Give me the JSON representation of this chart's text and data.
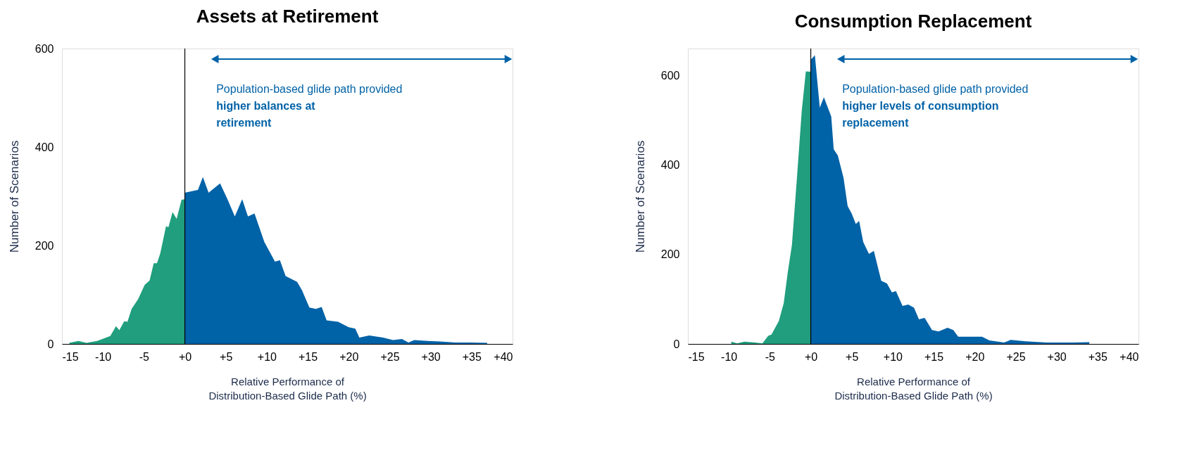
{
  "chart_data": [
    {
      "type": "area",
      "title": "Assets at Retirement",
      "xlabel": "Relative Performance of\nDistribution-Based Glide Path (%)",
      "ylabel": "Number of Scenarios",
      "annotations": [
        "Population-based glide path provided",
        "higher balances at retirement"
      ],
      "xlim": [
        -15,
        40
      ],
      "xticks": [
        {
          "value": -15,
          "label": "-15"
        },
        {
          "value": -10,
          "label": "-10"
        },
        {
          "value": -5,
          "label": "-5"
        },
        {
          "value": 0,
          "label": "+0"
        },
        {
          "value": 5,
          "label": "+5"
        },
        {
          "value": 10,
          "label": "+10"
        },
        {
          "value": 15,
          "label": "+15"
        },
        {
          "value": 20,
          "label": "+20"
        },
        {
          "value": 25,
          "label": "+25"
        },
        {
          "value": 30,
          "label": "+30"
        },
        {
          "value": 35,
          "label": "+35"
        },
        {
          "value": 40,
          "label": "+40"
        }
      ],
      "ylim": [
        0,
        600
      ],
      "yticks": [
        0,
        200,
        400,
        600
      ],
      "grid": false,
      "ref_lines": [
        {
          "axis": "x",
          "value": 0,
          "color": "#000000"
        }
      ],
      "series": [
        {
          "color": "#209e7d",
          "x": [
            -14.1,
            -13.0,
            -12.0,
            -10.7,
            -9.1,
            -8.4,
            -8.0,
            -7.4,
            -7.0,
            -6.5,
            -5.7,
            -4.9,
            -4.3,
            -3.8,
            -3.4,
            -3.0,
            -2.3,
            -2.0,
            -1.5,
            -1.0,
            -0.4,
            0
          ],
          "values": [
            2,
            6,
            2,
            6,
            16,
            36,
            28,
            46,
            45,
            71,
            91,
            120,
            129,
            164,
            164,
            184,
            239,
            237,
            268,
            254,
            293,
            294
          ]
        },
        {
          "color": "#0062a7",
          "x": [
            0,
            1.6,
            2.2,
            2.9,
            4.3,
            5.2,
            6.1,
            7.0,
            7.7,
            8.5,
            9.7,
            11.0,
            11.6,
            12.3,
            13.7,
            14.3,
            15.2,
            16.0,
            16.7,
            17.3,
            18.7,
            20.0,
            20.8,
            21.3,
            22.5,
            24.2,
            25.4,
            26.5,
            27.3,
            28.0,
            29.6,
            31.1,
            33.0,
            34.9,
            36.9
          ],
          "values": [
            307,
            313,
            339,
            307,
            326,
            294,
            259,
            294,
            259,
            265,
            207,
            167,
            170,
            138,
            126,
            109,
            74,
            71,
            75,
            48,
            45,
            34,
            31,
            13,
            17,
            13,
            8,
            10,
            3,
            8,
            6,
            5,
            3,
            3,
            2
          ]
        }
      ]
    },
    {
      "type": "area",
      "title": "Consumption Replacement",
      "xlabel": "Relative Performance of\nDistribution-Based Glide Path (%)",
      "ylabel": "Number of Scenarios",
      "annotations": [
        "Population-based glide path provided",
        "higher levels of consumption replacement"
      ],
      "xlim": [
        -15,
        40
      ],
      "xticks": [
        {
          "value": -15,
          "label": "-15"
        },
        {
          "value": -10,
          "label": "-10"
        },
        {
          "value": -5,
          "label": "-5"
        },
        {
          "value": 0,
          "label": "+0"
        },
        {
          "value": 5,
          "label": "+5"
        },
        {
          "value": 10,
          "label": "+10"
        },
        {
          "value": 15,
          "label": "+15"
        },
        {
          "value": 20,
          "label": "+20"
        },
        {
          "value": 25,
          "label": "+25"
        },
        {
          "value": 30,
          "label": "+30"
        },
        {
          "value": 35,
          "label": "+35"
        },
        {
          "value": 40,
          "label": "+40"
        }
      ],
      "ylim": [
        0,
        660
      ],
      "yticks": [
        0,
        200,
        400,
        600
      ],
      "grid": false,
      "ref_lines": [
        {
          "axis": "x",
          "value": 0,
          "color": "#000000"
        }
      ],
      "series": [
        {
          "color": "#209e7d",
          "x": [
            -9.7,
            -9.0,
            -8.1,
            -6.8,
            -5.9,
            -5.2,
            -4.8,
            -3.9,
            -3.3,
            -2.8,
            -2.3,
            -1.7,
            -1.1,
            -0.6,
            0
          ],
          "values": [
            5,
            1,
            5,
            3,
            1,
            18,
            21,
            51,
            91,
            161,
            221,
            368,
            521,
            609,
            608
          ]
        },
        {
          "color": "#0062a7",
          "x": [
            0,
            0.5,
            1.1,
            1.6,
            2.5,
            2.8,
            3.3,
            4.0,
            4.5,
            5.0,
            5.5,
            5.9,
            6.4,
            7.1,
            7.7,
            8.6,
            9.3,
            9.9,
            10.4,
            11.2,
            11.9,
            12.6,
            13.2,
            13.9,
            14.8,
            15.6,
            16.7,
            17.4,
            18.0,
            20.9,
            21.8,
            23.6,
            24.4,
            26.2,
            28.8,
            31.4,
            34.0
          ],
          "values": [
            635,
            645,
            528,
            551,
            508,
            435,
            421,
            371,
            308,
            291,
            268,
            275,
            228,
            201,
            208,
            141,
            135,
            115,
            118,
            85,
            88,
            81,
            55,
            58,
            31,
            28,
            36,
            31,
            16,
            16,
            8,
            3,
            9,
            6,
            3,
            3,
            4
          ]
        }
      ]
    }
  ]
}
